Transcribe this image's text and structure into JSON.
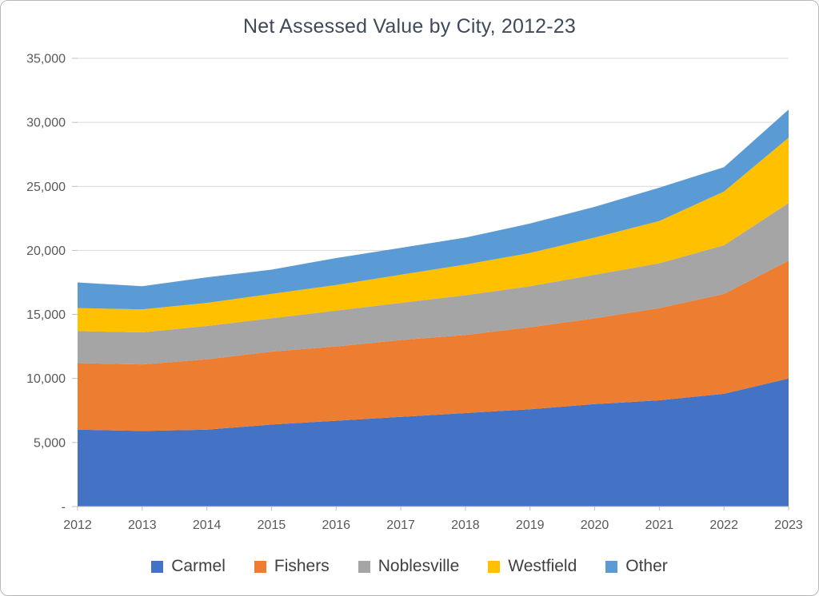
{
  "chart_data": {
    "type": "area",
    "stacked": true,
    "title": "Net Assessed Value by City, 2012-23",
    "categories": [
      "2012",
      "2013",
      "2014",
      "2015",
      "2016",
      "2017",
      "2018",
      "2019",
      "2020",
      "2021",
      "2022",
      "2023"
    ],
    "series": [
      {
        "name": "Carmel",
        "color": "#4472C4",
        "values": [
          6000,
          5900,
          6000,
          6400,
          6700,
          7000,
          7300,
          7600,
          8000,
          8300,
          8800,
          10000
        ]
      },
      {
        "name": "Fishers",
        "color": "#ED7D31",
        "values": [
          5200,
          5200,
          5500,
          5700,
          5800,
          6000,
          6100,
          6400,
          6700,
          7200,
          7800,
          9200
        ]
      },
      {
        "name": "Noblesville",
        "color": "#A5A5A5",
        "values": [
          2500,
          2500,
          2600,
          2600,
          2800,
          2900,
          3100,
          3200,
          3400,
          3500,
          3800,
          4500
        ]
      },
      {
        "name": "Westfield",
        "color": "#FFC000",
        "values": [
          1800,
          1800,
          1800,
          1900,
          2000,
          2200,
          2400,
          2600,
          2900,
          3300,
          4200,
          5100
        ]
      },
      {
        "name": "Other",
        "color": "#5B9BD5",
        "values": [
          2000,
          1800,
          2000,
          1900,
          2100,
          2100,
          2100,
          2300,
          2400,
          2600,
          1900,
          2200
        ]
      }
    ],
    "xlabel": "",
    "ylabel": "",
    "ylim": [
      0,
      35000
    ],
    "ytick_step": 5000,
    "ytick_labels": [
      "-",
      "5,000",
      "10,000",
      "15,000",
      "20,000",
      "25,000",
      "30,000",
      "35,000"
    ],
    "grid": true,
    "legend_position": "bottom"
  },
  "style": {
    "title_color": "#3F4A59",
    "axis_text_color": "#595959",
    "legend_text_color": "#404040",
    "gridline_color": "#D9D9D9",
    "axis_line_color": "#BFBFBF"
  }
}
